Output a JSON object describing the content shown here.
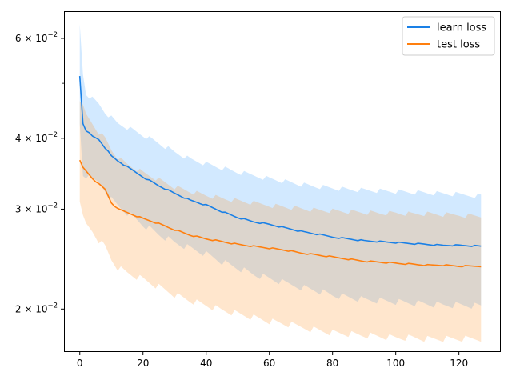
{
  "chart_data": {
    "type": "line",
    "title": "",
    "xlabel": "",
    "ylabel": "",
    "xlim": [
      -5,
      133
    ],
    "ylim": [
      0.0168,
      0.067
    ],
    "yscale": "log",
    "xticks": [
      0,
      20,
      40,
      60,
      80,
      100,
      120
    ],
    "xtick_labels": [
      "0",
      "20",
      "40",
      "60",
      "80",
      "100",
      "120"
    ],
    "yticks": [
      0.06,
      0.04,
      0.03,
      0.02
    ],
    "ytick_labels": [
      {
        "mantissa": "6",
        "times": "×",
        "base": "10",
        "exp": "−2"
      },
      {
        "mantissa": "4",
        "times": "×",
        "base": "10",
        "exp": "−2"
      },
      {
        "mantissa": "3",
        "times": "×",
        "base": "10",
        "exp": "−2"
      },
      {
        "mantissa": "2",
        "times": "×",
        "base": "10",
        "exp": "−2"
      }
    ],
    "minor_yticks": [
      0.05
    ],
    "grid": false,
    "legend_position": "top-right",
    "x": {
      "start": 0,
      "end": 127,
      "step": 1
    },
    "series": [
      {
        "name": "learn loss",
        "color": "#1a80e6",
        "band_color": "#3399ff",
        "anchors": {
          "x": [
            0,
            1,
            2,
            4,
            6,
            8,
            10,
            12,
            15,
            20,
            25,
            30,
            35,
            40,
            45,
            50,
            55,
            60,
            65,
            70,
            75,
            80,
            85,
            90,
            95,
            100,
            105,
            110,
            115,
            120,
            127
          ],
          "mean": [
            0.0515,
            0.0425,
            0.0413,
            0.0403,
            0.0398,
            0.0385,
            0.0372,
            0.0365,
            0.0356,
            0.0342,
            0.033,
            0.032,
            0.0311,
            0.0305,
            0.0297,
            0.029,
            0.0285,
            0.0282,
            0.0278,
            0.0274,
            0.0271,
            0.0268,
            0.0266,
            0.0264,
            0.0263,
            0.0262,
            0.0261,
            0.026,
            0.0259,
            0.0259,
            0.0258
          ],
          "upper": [
            0.0635,
            0.052,
            0.048,
            0.047,
            0.046,
            0.0445,
            0.0435,
            0.0425,
            0.0418,
            0.0405,
            0.0392,
            0.0378,
            0.0367,
            0.036,
            0.0354,
            0.0348,
            0.0344,
            0.034,
            0.0336,
            0.0332,
            0.0329,
            0.0327,
            0.0325,
            0.0324,
            0.0323,
            0.0322,
            0.0321,
            0.032,
            0.0319,
            0.0318,
            0.0317
          ],
          "lower": [
            0.0425,
            0.0345,
            0.0343,
            0.0337,
            0.0335,
            0.0325,
            0.0312,
            0.0305,
            0.0296,
            0.0282,
            0.0271,
            0.0262,
            0.0256,
            0.025,
            0.0242,
            0.0236,
            0.023,
            0.0226,
            0.0222,
            0.0219,
            0.0216,
            0.0212,
            0.021,
            0.0208,
            0.0207,
            0.0206,
            0.0205,
            0.0204,
            0.0203,
            0.0203,
            0.0202
          ]
        }
      },
      {
        "name": "test loss",
        "color": "#ff7f0e",
        "band_color": "#ff8c1a",
        "anchors": {
          "x": [
            0,
            1,
            2,
            4,
            6,
            8,
            10,
            12,
            15,
            20,
            25,
            30,
            35,
            40,
            45,
            50,
            55,
            60,
            65,
            70,
            75,
            80,
            85,
            90,
            95,
            100,
            105,
            110,
            115,
            120,
            127
          ],
          "mean": [
            0.0365,
            0.0355,
            0.035,
            0.034,
            0.0332,
            0.0325,
            0.0308,
            0.03,
            0.0296,
            0.0289,
            0.0283,
            0.0276,
            0.027,
            0.0266,
            0.0263,
            0.026,
            0.0258,
            0.0256,
            0.0254,
            0.0251,
            0.0249,
            0.0247,
            0.0245,
            0.0243,
            0.0242,
            0.0241,
            0.024,
            0.0239,
            0.0239,
            0.0238,
            0.0238
          ],
          "upper": [
            0.047,
            0.0455,
            0.044,
            0.0425,
            0.041,
            0.04,
            0.0382,
            0.037,
            0.036,
            0.0348,
            0.0338,
            0.0328,
            0.0322,
            0.0317,
            0.0313,
            0.031,
            0.0307,
            0.0305,
            0.0303,
            0.0301,
            0.0299,
            0.0298,
            0.0297,
            0.0296,
            0.0295,
            0.0295,
            0.0294,
            0.0294,
            0.0293,
            0.0293,
            0.0292
          ],
          "lower": [
            0.0305,
            0.029,
            0.0282,
            0.0275,
            0.0265,
            0.0258,
            0.0245,
            0.0237,
            0.0232,
            0.0226,
            0.0219,
            0.0212,
            0.0207,
            0.0203,
            0.0199,
            0.0196,
            0.0193,
            0.019,
            0.0188,
            0.0186,
            0.0184,
            0.0182,
            0.0181,
            0.018,
            0.0179,
            0.0178,
            0.0178,
            0.0177,
            0.0177,
            0.0177,
            0.0177
          ]
        }
      }
    ]
  }
}
